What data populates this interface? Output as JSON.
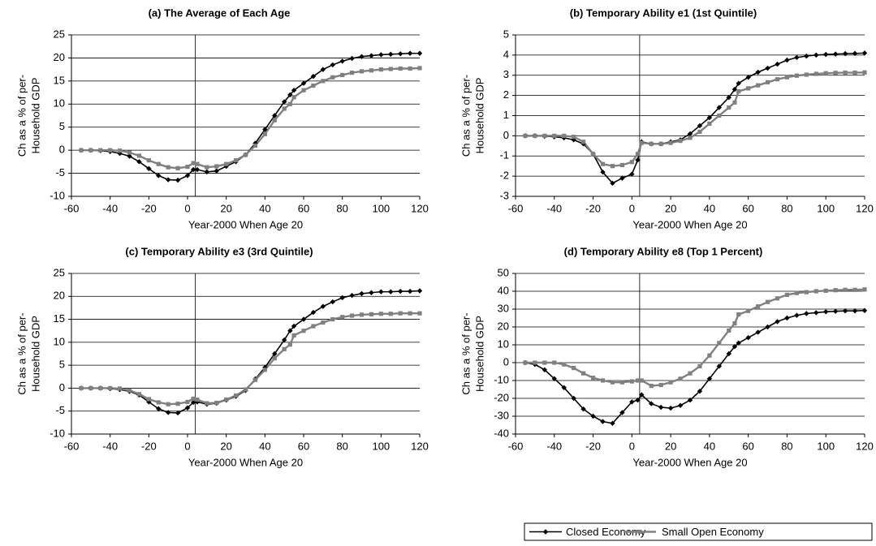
{
  "chart_data": [
    {
      "type": "line",
      "title": "(a) The Average of Each Age",
      "xlabel": "Year-2000 When Age 20",
      "ylabel": [
        "Ch as a % of per-",
        "Household GDP"
      ],
      "x": [
        -55,
        -50,
        -45,
        -40,
        -35,
        -30,
        -25,
        -20,
        -15,
        -10,
        -5,
        0,
        3,
        5,
        10,
        15,
        20,
        25,
        30,
        35,
        40,
        45,
        50,
        53,
        55,
        60,
        65,
        70,
        75,
        80,
        85,
        90,
        95,
        100,
        105,
        110,
        115,
        120
      ],
      "series": [
        {
          "name": "Closed Economy",
          "color": "#000000",
          "values": [
            0,
            0,
            -0.1,
            -0.3,
            -0.7,
            -1.3,
            -2.5,
            -4,
            -5.5,
            -6.4,
            -6.5,
            -5.5,
            -4.2,
            -4.2,
            -4.7,
            -4.5,
            -3.5,
            -2.5,
            -1,
            1.5,
            4.5,
            7.5,
            10.5,
            12,
            13,
            14.5,
            16,
            17.5,
            18.5,
            19.3,
            19.9,
            20.3,
            20.5,
            20.7,
            20.8,
            20.9,
            21,
            21
          ]
        },
        {
          "name": "Small Open Economy",
          "color": "#808080",
          "values": [
            0,
            0,
            0,
            0,
            -0.1,
            -0.5,
            -1.2,
            -2.2,
            -3,
            -3.7,
            -3.9,
            -3.6,
            -2.8,
            -3,
            -3.7,
            -3.5,
            -3,
            -2.2,
            -1,
            1,
            3.5,
            6.5,
            9,
            10,
            11.5,
            13,
            14,
            15,
            15.8,
            16.3,
            16.8,
            17.1,
            17.3,
            17.5,
            17.6,
            17.7,
            17.7,
            17.8
          ]
        }
      ],
      "xlim": [
        -60,
        120
      ],
      "xticks": [
        -60,
        -40,
        -20,
        0,
        20,
        40,
        60,
        80,
        100,
        120
      ],
      "ylim": [
        -10,
        25
      ],
      "yticks": [
        -10,
        -5,
        0,
        5,
        10,
        15,
        20,
        25
      ],
      "grid": true,
      "reference_line_x": 4
    },
    {
      "type": "line",
      "title": "(b) Temporary Ability e1 (1st Quintile)",
      "xlabel": "Year-2000 When Age 20",
      "ylabel": [
        "Ch as a % of per-",
        "Household GDP"
      ],
      "x": [
        -55,
        -50,
        -45,
        -40,
        -35,
        -30,
        -25,
        -20,
        -15,
        -10,
        -5,
        0,
        3,
        5,
        10,
        15,
        20,
        25,
        30,
        35,
        40,
        45,
        50,
        53,
        55,
        60,
        65,
        70,
        75,
        80,
        85,
        90,
        95,
        100,
        105,
        110,
        115,
        120
      ],
      "series": [
        {
          "name": "Closed Economy",
          "color": "#000000",
          "values": [
            0,
            0,
            -0.02,
            -0.05,
            -0.1,
            -0.2,
            -0.4,
            -0.9,
            -1.8,
            -2.35,
            -2.1,
            -1.9,
            -1.2,
            -0.3,
            -0.4,
            -0.4,
            -0.3,
            -0.2,
            0.1,
            0.5,
            0.9,
            1.4,
            1.9,
            2.3,
            2.6,
            2.9,
            3.15,
            3.35,
            3.55,
            3.75,
            3.88,
            3.95,
            4,
            4.03,
            4.05,
            4.07,
            4.08,
            4.1
          ]
        },
        {
          "name": "Small Open Economy",
          "color": "#808080",
          "values": [
            0,
            0,
            0,
            0,
            0,
            -0.05,
            -0.3,
            -0.9,
            -1.4,
            -1.5,
            -1.45,
            -1.3,
            -0.9,
            -0.35,
            -0.4,
            -0.4,
            -0.35,
            -0.25,
            -0.1,
            0.2,
            0.6,
            1,
            1.4,
            1.65,
            2.2,
            2.35,
            2.5,
            2.65,
            2.8,
            2.9,
            2.98,
            3.03,
            3.07,
            3.1,
            3.12,
            3.13,
            3.13,
            3.14
          ]
        }
      ],
      "xlim": [
        -60,
        120
      ],
      "xticks": [
        -60,
        -40,
        -20,
        0,
        20,
        40,
        60,
        80,
        100,
        120
      ],
      "ylim": [
        -3,
        5
      ],
      "yticks": [
        -3,
        -2,
        -1,
        0,
        1,
        2,
        3,
        4,
        5
      ],
      "grid": true,
      "reference_line_x": 4
    },
    {
      "type": "line",
      "title": "(c) Temporary Ability e3 (3rd Quintile)",
      "xlabel": "Year-2000 When Age 20",
      "ylabel": [
        "Ch as a % of per-",
        "Household GDP"
      ],
      "x": [
        -55,
        -50,
        -45,
        -40,
        -35,
        -30,
        -25,
        -20,
        -15,
        -10,
        -5,
        0,
        3,
        5,
        10,
        15,
        20,
        25,
        30,
        35,
        40,
        45,
        50,
        53,
        55,
        60,
        65,
        70,
        75,
        80,
        85,
        90,
        95,
        100,
        105,
        110,
        115,
        120
      ],
      "series": [
        {
          "name": "Closed Economy",
          "color": "#000000",
          "values": [
            0,
            0,
            0,
            -0.1,
            -0.3,
            -0.7,
            -1.5,
            -3,
            -4.5,
            -5.3,
            -5.4,
            -4.3,
            -3.1,
            -3,
            -3.5,
            -3.3,
            -2.6,
            -1.8,
            -0.5,
            2,
            4.5,
            7.5,
            10.5,
            12.5,
            13.5,
            15,
            16.5,
            17.8,
            18.8,
            19.7,
            20.2,
            20.6,
            20.8,
            21,
            21,
            21.1,
            21.1,
            21.2
          ]
        },
        {
          "name": "Small Open Economy",
          "color": "#808080",
          "values": [
            0,
            0,
            0,
            0,
            -0.1,
            -0.5,
            -1.3,
            -2.4,
            -3.1,
            -3.5,
            -3.4,
            -3,
            -2.3,
            -2.5,
            -3.3,
            -3.2,
            -2.5,
            -1.6,
            -0.3,
            1.8,
            4,
            6.5,
            8.5,
            9.5,
            11.5,
            12.5,
            13.5,
            14.3,
            15,
            15.5,
            15.8,
            16,
            16.1,
            16.2,
            16.2,
            16.3,
            16.3,
            16.3
          ]
        }
      ],
      "xlim": [
        -60,
        120
      ],
      "xticks": [
        -60,
        -40,
        -20,
        0,
        20,
        40,
        60,
        80,
        100,
        120
      ],
      "ylim": [
        -10,
        25
      ],
      "yticks": [
        -10,
        -5,
        0,
        5,
        10,
        15,
        20,
        25
      ],
      "grid": true,
      "reference_line_x": 4
    },
    {
      "type": "line",
      "title": "(d) Temporary Ability e8 (Top 1 Percent)",
      "xlabel": "Year-2000 When Age 20",
      "ylabel": [
        "Ch as a % of per-",
        "Household GDP"
      ],
      "x": [
        -55,
        -50,
        -45,
        -40,
        -35,
        -30,
        -25,
        -20,
        -15,
        -10,
        -5,
        0,
        3,
        5,
        10,
        15,
        20,
        25,
        30,
        35,
        40,
        45,
        50,
        53,
        55,
        60,
        65,
        70,
        75,
        80,
        85,
        90,
        95,
        100,
        105,
        110,
        115,
        120
      ],
      "series": [
        {
          "name": "Closed Economy",
          "color": "#000000",
          "values": [
            0,
            -1,
            -4,
            -9,
            -14,
            -20,
            -26,
            -30,
            -33,
            -34,
            -28,
            -22,
            -21,
            -18,
            -23,
            -25,
            -25.5,
            -24,
            -21,
            -16,
            -9,
            -2,
            5,
            9,
            11,
            14,
            17,
            20,
            23,
            25,
            26.5,
            27.5,
            28,
            28.5,
            28.8,
            29,
            29,
            29.2
          ]
        },
        {
          "name": "Small Open Economy",
          "color": "#808080",
          "values": [
            0,
            0,
            0,
            0,
            -1,
            -3,
            -6,
            -8.5,
            -10,
            -11,
            -11,
            -10.5,
            -10,
            -10,
            -13,
            -12.5,
            -11,
            -9,
            -6,
            -2,
            4,
            11,
            18,
            22,
            27,
            29,
            31.5,
            34,
            36,
            38,
            39,
            39.5,
            40,
            40.3,
            40.6,
            40.8,
            40.8,
            41
          ]
        }
      ],
      "xlim": [
        -60,
        120
      ],
      "xticks": [
        -60,
        -40,
        -20,
        0,
        20,
        40,
        60,
        80,
        100,
        120
      ],
      "ylim": [
        -40,
        50
      ],
      "yticks": [
        -40,
        -30,
        -20,
        -10,
        0,
        10,
        20,
        30,
        40,
        50
      ],
      "grid": true,
      "reference_line_x": 4,
      "legend": "below"
    }
  ]
}
